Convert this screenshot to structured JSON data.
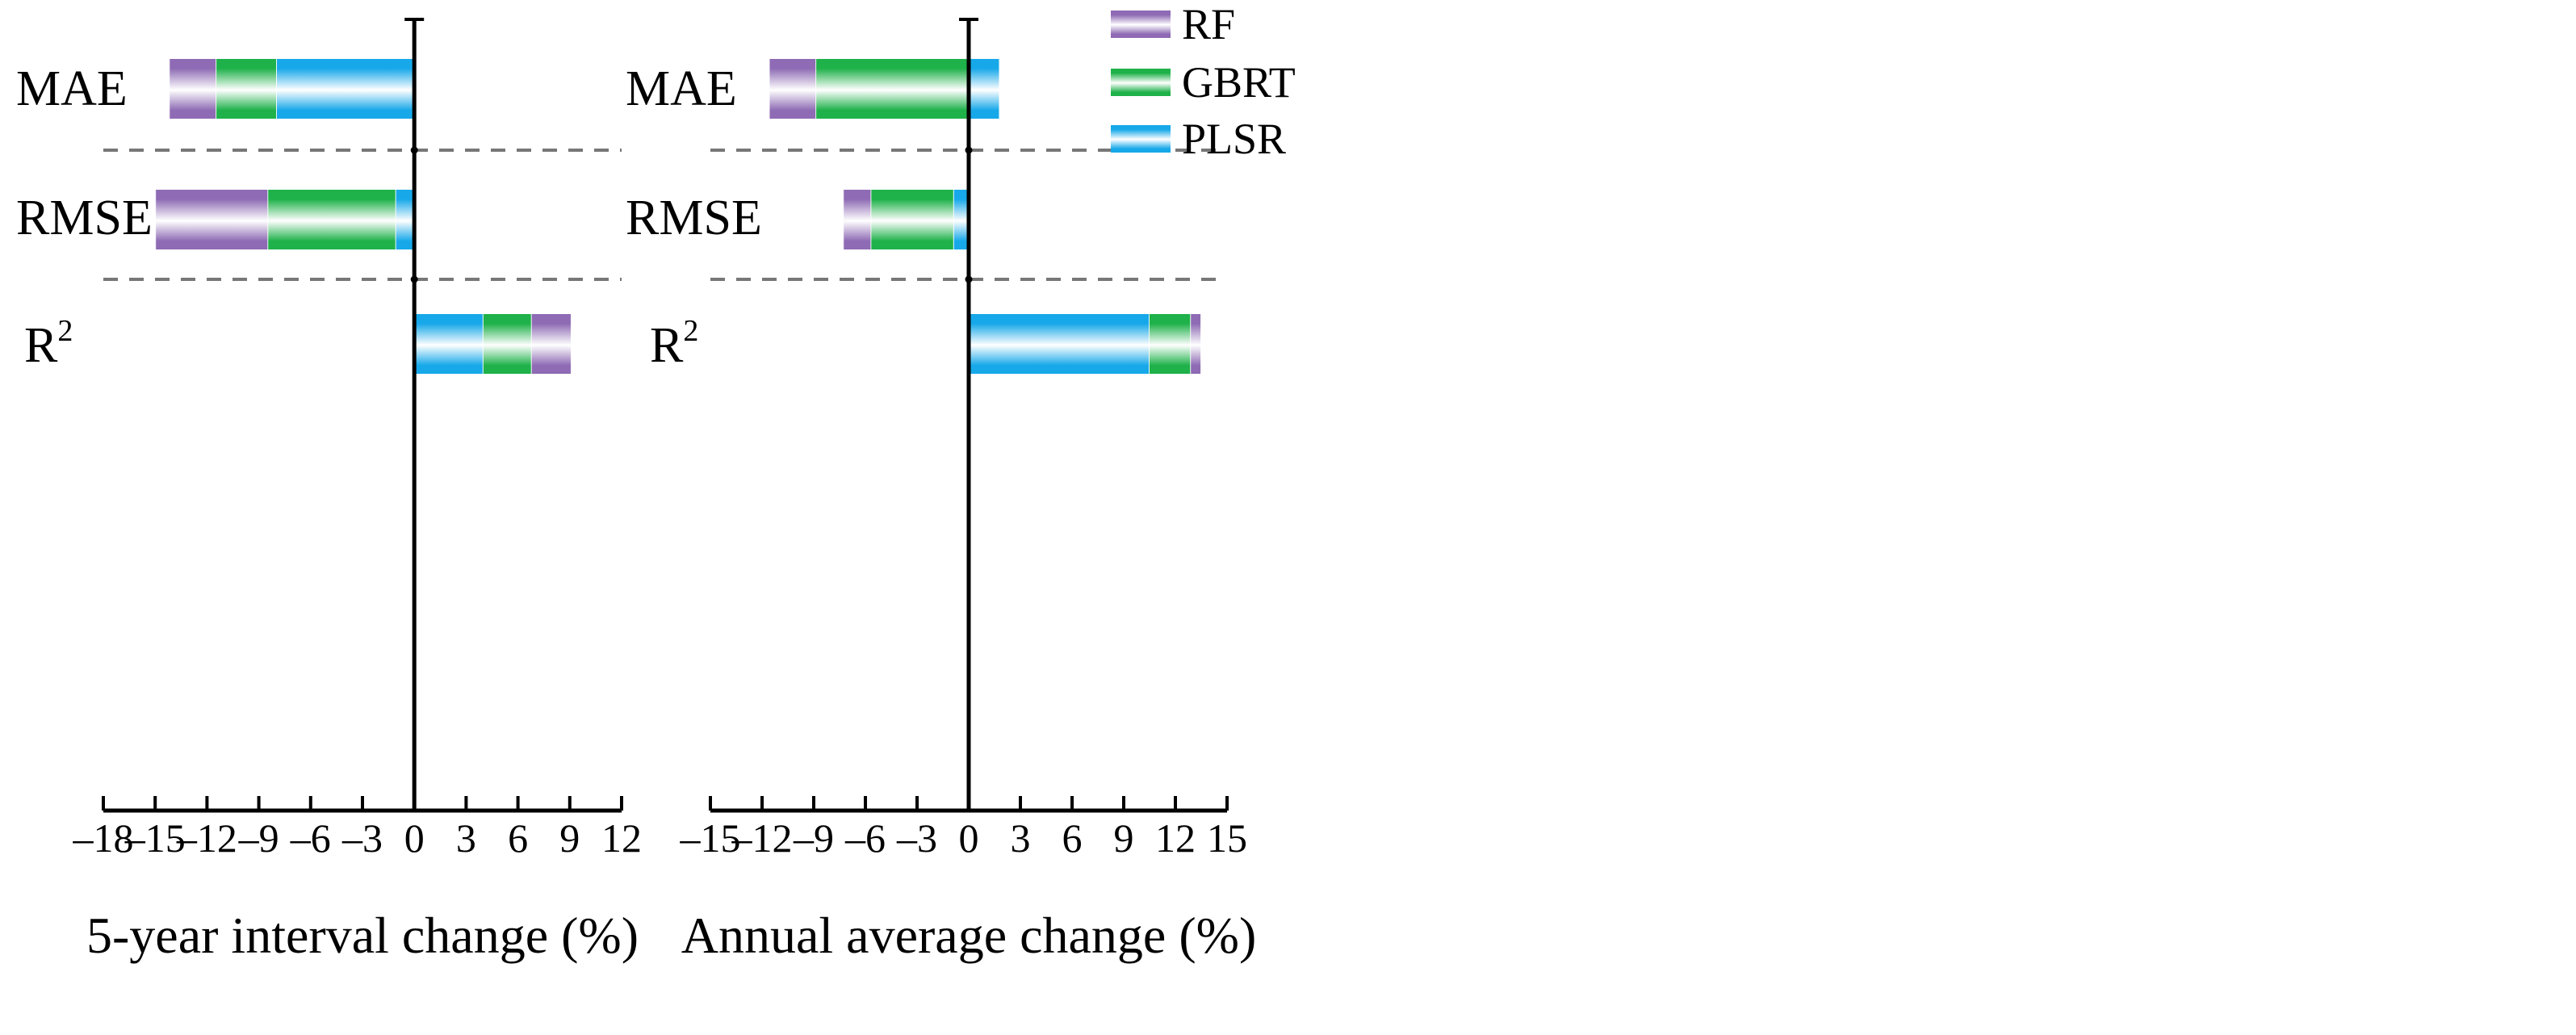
{
  "chart_data": [
    {
      "type": "bar",
      "orientation": "horizontal",
      "stacked": true,
      "categories": [
        "MAE",
        "RMSE",
        "R2"
      ],
      "category_labels": [
        {
          "text": "MAE",
          "sup": ""
        },
        {
          "text": "RMSE",
          "sup": ""
        },
        {
          "text": "R",
          "sup": "2"
        }
      ],
      "series": [
        {
          "name": "PLSR",
          "values": [
            -8.0,
            -1.1,
            4.0
          ]
        },
        {
          "name": "GBRT",
          "values": [
            -3.5,
            -7.4,
            2.8
          ]
        },
        {
          "name": "RF",
          "values": [
            -2.7,
            -6.5,
            2.3
          ]
        }
      ],
      "stack_order": [
        "PLSR",
        "GBRT",
        "RF"
      ],
      "xlabel": "5-year interval change (%)",
      "xlim": [
        -18,
        12
      ],
      "xticks": [
        -18,
        -15,
        -12,
        -9,
        -6,
        -3,
        0,
        3,
        6,
        9,
        12
      ],
      "xtick_labels": [
        "–18",
        "–15",
        "–12",
        "–9",
        "–6",
        "–3",
        "0",
        "3",
        "6",
        "9",
        "12"
      ],
      "category_separators": "dashed",
      "grid": false
    },
    {
      "type": "bar",
      "orientation": "horizontal",
      "stacked": true,
      "categories": [
        "MAE",
        "RMSE",
        "R2"
      ],
      "category_labels": [
        {
          "text": "MAE",
          "sup": ""
        },
        {
          "text": "RMSE",
          "sup": ""
        },
        {
          "text": "R",
          "sup": "2"
        }
      ],
      "series": [
        {
          "name": "PLSR",
          "values": [
            1.8,
            -0.9,
            10.5
          ]
        },
        {
          "name": "GBRT",
          "values": [
            -8.9,
            -4.8,
            2.4
          ]
        },
        {
          "name": "RF",
          "values": [
            -2.7,
            -1.6,
            0.6
          ]
        }
      ],
      "stack_order": [
        "PLSR",
        "GBRT",
        "RF"
      ],
      "xlabel": "Annual average change (%)",
      "xlim": [
        -15,
        15
      ],
      "xticks": [
        -15,
        -12,
        -9,
        -6,
        -3,
        0,
        3,
        6,
        9,
        12,
        15
      ],
      "xtick_labels": [
        "–15",
        "–12",
        "–9",
        "–6",
        "–3",
        "0",
        "3",
        "6",
        "9",
        "12",
        "15"
      ],
      "category_separators": "dashed",
      "grid": false
    }
  ],
  "legend": {
    "placement": "top-right",
    "items": [
      {
        "name": "RF",
        "color": "#8e6bb4"
      },
      {
        "name": "GBRT",
        "color": "#1fb14a"
      },
      {
        "name": "PLSR",
        "color": "#17a8e9"
      }
    ]
  },
  "colors": {
    "RF": "#8e6bb4",
    "GBRT": "#1fb14a",
    "PLSR": "#17a8e9",
    "separator": "#777777",
    "axis": "#000000"
  }
}
